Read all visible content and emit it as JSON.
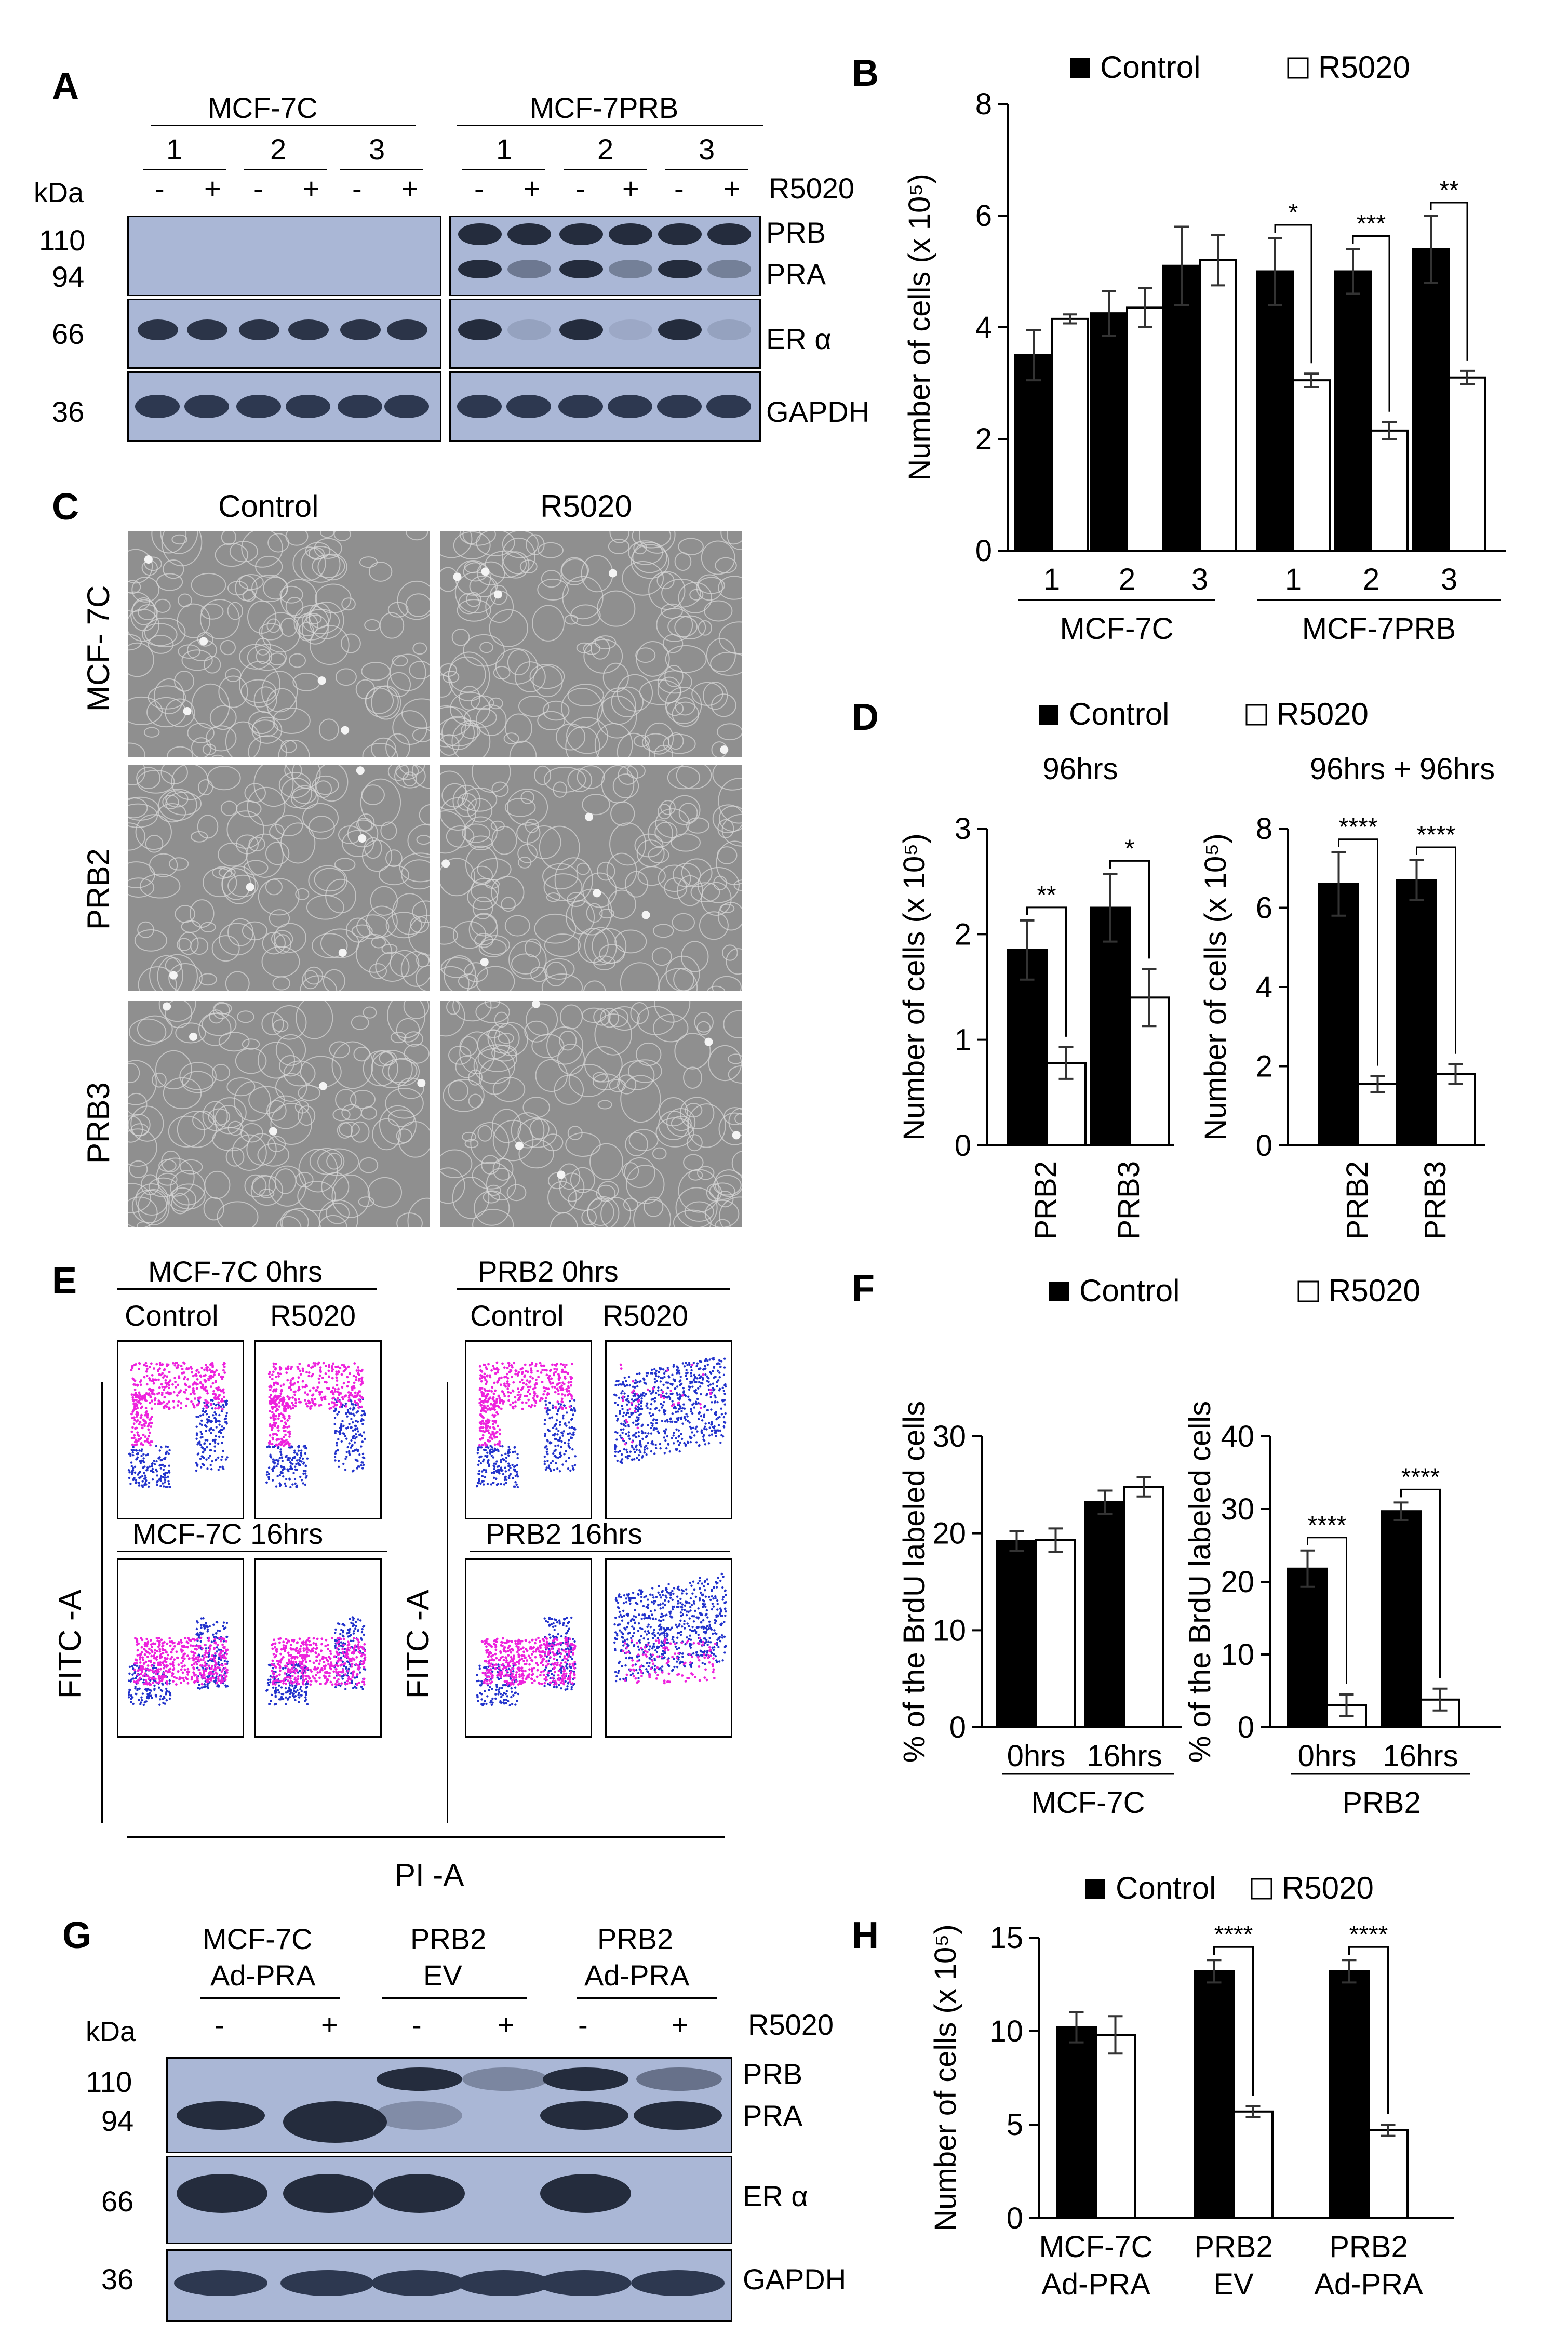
{
  "panels": {
    "A": "A",
    "B": "B",
    "C": "C",
    "D": "D",
    "E": "E",
    "F": "F",
    "G": "G",
    "H": "H"
  },
  "blotA": {
    "group1": "MCF-7C",
    "group2": "MCF-7PRB",
    "lanes": [
      "1",
      "2",
      "3",
      "1",
      "2",
      "3"
    ],
    "treat": [
      "-",
      "+",
      "-",
      "+",
      "-",
      "+",
      "-",
      "+",
      "-",
      "+",
      "-",
      "+"
    ],
    "kda": "kDa",
    "r5020": "R5020",
    "mw": [
      "110",
      "94",
      "66",
      "36"
    ],
    "bands": [
      "PRB",
      "PRA",
      "ER α",
      "GAPDH"
    ]
  },
  "panelC": {
    "cols": [
      "Control",
      "R5020"
    ],
    "rows": [
      "MCF- 7C",
      "PRB2",
      "PRB3"
    ]
  },
  "panelE": {
    "t1": "MCF-7C 0hrs",
    "t2": "PRB2 0hrs",
    "t3": "MCF-7C 16hrs",
    "t4": "PRB2 16hrs",
    "c1": "Control",
    "c2": "R5020",
    "yaxis": "FITC -A",
    "xaxis": "PI -A"
  },
  "blotG": {
    "groups": [
      "MCF-7C",
      "Ad-PRA",
      "PRB2",
      "EV",
      "PRB2",
      "Ad-PRA"
    ],
    "treat": [
      "-",
      "+",
      "-",
      "+",
      "-",
      "+"
    ],
    "kda": "kDa",
    "r5020": "R5020",
    "mw": [
      "110",
      "94",
      "66",
      "36"
    ],
    "bands": [
      "PRB",
      "PRA",
      "ER α",
      "GAPDH"
    ]
  },
  "chart_data": [
    {
      "id": "B",
      "type": "bar",
      "legend": [
        "Control",
        "R5020"
      ],
      "categories": [
        "1",
        "2",
        "3",
        "1",
        "2",
        "3"
      ],
      "groups": [
        "MCF-7C",
        "MCF-7PRB"
      ],
      "ylabel": "Number of cells (x 10⁵)",
      "ylim": [
        0,
        8
      ],
      "yticks": [
        "0",
        "2",
        "4",
        "6",
        "8"
      ],
      "series": [
        {
          "name": "Control",
          "values": [
            3.5,
            4.25,
            5.1,
            5.0,
            5.0,
            5.4
          ],
          "err": [
            0.45,
            0.4,
            0.7,
            0.6,
            0.4,
            0.6
          ]
        },
        {
          "name": "R5020",
          "values": [
            4.15,
            4.35,
            5.2,
            3.05,
            2.15,
            3.1
          ],
          "err": [
            0.08,
            0.35,
            0.45,
            0.12,
            0.15,
            0.12
          ]
        }
      ],
      "sig": [
        "",
        "",
        "",
        "*",
        "***",
        "**"
      ]
    },
    {
      "id": "D1",
      "type": "bar",
      "legend": [
        "Control",
        "R5020"
      ],
      "title": "96hrs",
      "categories": [
        "PRB2",
        "PRB3"
      ],
      "ylabel": "Number of cells (x 10⁵)",
      "ylim": [
        0,
        3
      ],
      "yticks": [
        "0",
        "1",
        "2",
        "3"
      ],
      "series": [
        {
          "name": "Control",
          "values": [
            1.85,
            2.25
          ],
          "err": [
            0.28,
            0.32
          ]
        },
        {
          "name": "R5020",
          "values": [
            0.78,
            1.4
          ],
          "err": [
            0.15,
            0.27
          ]
        }
      ],
      "sig": [
        "**",
        "*"
      ]
    },
    {
      "id": "D2",
      "type": "bar",
      "title": "96hrs + 96hrs",
      "categories": [
        "PRB2",
        "PRB3"
      ],
      "ylabel": "Number of cells (x 10⁵)",
      "ylim": [
        0,
        8
      ],
      "yticks": [
        "0",
        "2",
        "4",
        "6",
        "8"
      ],
      "series": [
        {
          "name": "Control",
          "values": [
            6.6,
            6.7
          ],
          "err": [
            0.8,
            0.5
          ]
        },
        {
          "name": "R5020",
          "values": [
            1.55,
            1.8
          ],
          "err": [
            0.2,
            0.25
          ]
        }
      ],
      "sig": [
        "****",
        "****"
      ]
    },
    {
      "id": "F1",
      "type": "bar",
      "legend": [
        "Control",
        "R5020"
      ],
      "categories": [
        "0hrs",
        "16hrs"
      ],
      "group": "MCF-7C",
      "ylabel": "% of the BrdU labeled cells",
      "ylim": [
        0,
        30
      ],
      "yticks": [
        "0",
        "10",
        "20",
        "30"
      ],
      "series": [
        {
          "name": "Control",
          "values": [
            19.2,
            23.2
          ],
          "err": [
            1.0,
            1.2
          ]
        },
        {
          "name": "R5020",
          "values": [
            19.3,
            24.8
          ],
          "err": [
            1.2,
            1.0
          ]
        }
      ],
      "sig": [
        "",
        ""
      ]
    },
    {
      "id": "F2",
      "type": "bar",
      "categories": [
        "0hrs",
        "16hrs"
      ],
      "group": "PRB2",
      "ylabel": "% of the BrdU labeled cells",
      "ylim": [
        0,
        40
      ],
      "yticks": [
        "0",
        "10",
        "20",
        "30",
        "40"
      ],
      "series": [
        {
          "name": "Control",
          "values": [
            21.8,
            29.7
          ],
          "err": [
            2.5,
            1.2
          ]
        },
        {
          "name": "R5020",
          "values": [
            3.0,
            3.8
          ],
          "err": [
            1.5,
            1.5
          ]
        }
      ],
      "sig": [
        "****",
        "****"
      ]
    },
    {
      "id": "H",
      "type": "bar",
      "legend": [
        "Control",
        "R5020"
      ],
      "categories": [
        "MCF-7C\nAd-PRA",
        "PRB2\nEV",
        "PRB2\nAd-PRA"
      ],
      "ylabel": "Number of cells (x 10⁵)",
      "ylim": [
        0,
        15
      ],
      "yticks": [
        "0",
        "5",
        "10",
        "15"
      ],
      "series": [
        {
          "name": "Control",
          "values": [
            10.2,
            13.2,
            13.2
          ],
          "err": [
            0.8,
            0.6,
            0.6
          ]
        },
        {
          "name": "R5020",
          "values": [
            9.8,
            5.7,
            4.7
          ],
          "err": [
            1.0,
            0.3,
            0.3
          ]
        }
      ],
      "sig": [
        "",
        "****",
        "****"
      ]
    }
  ]
}
